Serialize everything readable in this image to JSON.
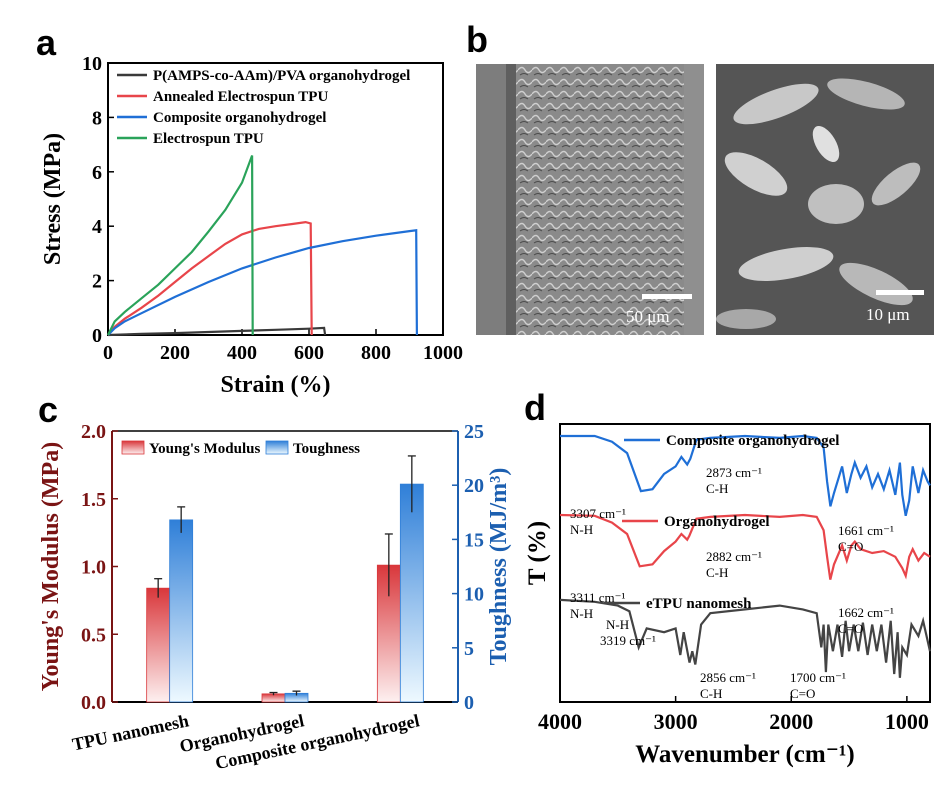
{
  "panel_labels": {
    "a": "a",
    "b": "b",
    "c": "c",
    "d": "d"
  },
  "sem_images": [
    {
      "scale_label": "50 μm"
    },
    {
      "scale_label": "10 μm"
    }
  ],
  "chart_data": [
    {
      "panel": "a",
      "type": "line",
      "xlabel": "Strain (%)",
      "ylabel": "Stress (MPa)",
      "xlim": [
        0,
        1000
      ],
      "ylim": [
        0,
        10
      ],
      "xticks": [
        0,
        200,
        400,
        600,
        800,
        1000
      ],
      "yticks": [
        0,
        2,
        4,
        6,
        8,
        10
      ],
      "legend_position": "top-left",
      "series": [
        {
          "name": "P(AMPS-co-AAm)/PVA organohydrogel",
          "color": "#3a3a3a",
          "x": [
            0,
            100,
            200,
            300,
            400,
            500,
            600,
            645,
            648
          ],
          "y": [
            0,
            0.04,
            0.07,
            0.11,
            0.15,
            0.19,
            0.23,
            0.26,
            0
          ]
        },
        {
          "name": "Annealed Electrospun TPU",
          "color": "#e8454a",
          "x": [
            0,
            20,
            50,
            100,
            150,
            200,
            250,
            300,
            350,
            400,
            450,
            500,
            550,
            590,
            605,
            608
          ],
          "y": [
            0,
            0.3,
            0.6,
            1.0,
            1.45,
            1.95,
            2.45,
            2.9,
            3.35,
            3.7,
            3.9,
            4.0,
            4.08,
            4.15,
            4.1,
            0
          ]
        },
        {
          "name": "Composite organohydrogel",
          "color": "#1f6fd6",
          "x": [
            0,
            20,
            50,
            100,
            200,
            300,
            400,
            500,
            600,
            700,
            800,
            900,
            920,
            922
          ],
          "y": [
            0,
            0.25,
            0.5,
            0.8,
            1.4,
            1.95,
            2.45,
            2.85,
            3.2,
            3.45,
            3.65,
            3.82,
            3.85,
            0
          ]
        },
        {
          "name": "Electrospun TPU",
          "color": "#2aa35a",
          "x": [
            0,
            20,
            50,
            100,
            150,
            200,
            250,
            300,
            350,
            400,
            430,
            432
          ],
          "y": [
            0,
            0.5,
            0.85,
            1.35,
            1.85,
            2.45,
            3.05,
            3.8,
            4.6,
            5.6,
            6.6,
            0
          ]
        }
      ]
    },
    {
      "panel": "c",
      "type": "bar",
      "categories": [
        "TPU nanomesh",
        "Organohydrogel",
        "Composite organohydrogel"
      ],
      "ylabel": "Young's Modulus (MPa)",
      "y2label": "Toughness (MJ/m³)",
      "ylim": [
        0,
        2.0
      ],
      "y2lim": [
        0,
        25
      ],
      "yticks": [
        0.0,
        0.5,
        1.0,
        1.5,
        2.0
      ],
      "y2ticks": [
        0,
        5,
        10,
        15,
        20,
        25
      ],
      "legend_position": "top-left",
      "series": [
        {
          "name": "Young's Modulus",
          "axis": "left",
          "color": "#d9373b",
          "values": [
            0.84,
            0.06,
            1.01
          ],
          "errors": [
            0.07,
            0.01,
            0.23
          ]
        },
        {
          "name": "Toughness",
          "axis": "right",
          "color": "#2f7fd8",
          "values": [
            16.8,
            0.8,
            20.1
          ],
          "errors": [
            1.2,
            0.2,
            2.6
          ]
        }
      ]
    },
    {
      "panel": "d",
      "type": "line",
      "xlabel": "Wavenumber (cm⁻¹)",
      "ylabel": "T (%)",
      "xlim": [
        4000,
        800
      ],
      "xticks": [
        4000,
        3000,
        2000,
        1000
      ],
      "series": [
        {
          "name": "Composite organohydrogel",
          "color": "#1f6fd6",
          "x": [
            4000,
            3700,
            3550,
            3420,
            3300,
            3200,
            3100,
            3000,
            2950,
            2900,
            2873,
            2820,
            2700,
            2400,
            2100,
            1900,
            1780,
            1720,
            1690,
            1661,
            1630,
            1560,
            1520,
            1480,
            1450,
            1400,
            1350,
            1300,
            1250,
            1200,
            1150,
            1100,
            1060,
            1040,
            1010,
            980,
            950,
            900,
            860,
            820,
            800
          ],
          "y": [
            0.5,
            0.5,
            0.35,
            0.05,
            -0.95,
            -0.9,
            -0.5,
            -0.3,
            -0.05,
            -0.25,
            -0.1,
            0.4,
            0.45,
            0.5,
            0.45,
            0.5,
            0.45,
            0.2,
            -0.7,
            -1.35,
            -1.0,
            -0.3,
            -1.0,
            -0.5,
            -0.2,
            -0.6,
            -0.3,
            -0.85,
            -0.5,
            -0.9,
            -0.4,
            -1.05,
            -0.2,
            -1.05,
            -1.6,
            -1.2,
            -0.3,
            -1.0,
            -0.4,
            -0.7,
            -0.8
          ]
        },
        {
          "name": "Organohydrogel",
          "color": "#e8454a",
          "x": [
            4000,
            3700,
            3550,
            3420,
            3311,
            3200,
            3100,
            3000,
            2950,
            2900,
            2882,
            2820,
            2700,
            2400,
            2100,
            1900,
            1780,
            1720,
            1690,
            1662,
            1630,
            1560,
            1520,
            1480,
            1450,
            1400,
            1300,
            1200,
            1100,
            1040,
            1010,
            980,
            950,
            900,
            850,
            800
          ],
          "y": [
            0.5,
            0.48,
            0.3,
            0.0,
            -0.85,
            -0.8,
            -0.45,
            -0.2,
            0.0,
            -0.15,
            -0.05,
            0.4,
            0.45,
            0.5,
            0.45,
            0.5,
            0.45,
            0.1,
            -0.6,
            -1.2,
            -0.8,
            -0.3,
            -0.7,
            -0.3,
            -0.2,
            -0.4,
            -0.5,
            -0.45,
            -0.6,
            -0.9,
            -1.1,
            -0.6,
            -0.4,
            -0.7,
            -0.5,
            -0.6
          ]
        },
        {
          "name": "eTPU nanomesh",
          "color": "#444444",
          "x": [
            4000,
            3700,
            3500,
            3400,
            3319,
            3250,
            3100,
            3000,
            2960,
            2930,
            2880,
            2856,
            2830,
            2780,
            2700,
            2400,
            2100,
            1900,
            1780,
            1740,
            1720,
            1700,
            1680,
            1640,
            1600,
            1560,
            1530,
            1500,
            1460,
            1420,
            1380,
            1340,
            1300,
            1260,
            1220,
            1180,
            1140,
            1110,
            1080,
            1060,
            1040,
            1000,
            960,
            900,
            860,
            800
          ],
          "y": [
            0.45,
            0.4,
            0.3,
            0.15,
            -0.8,
            -0.3,
            -0.4,
            -0.3,
            -1.0,
            -0.4,
            -1.2,
            -0.9,
            -1.25,
            -0.2,
            0.1,
            0.2,
            0.3,
            0.2,
            0.1,
            -0.8,
            -0.2,
            -1.45,
            -0.2,
            -0.9,
            -0.2,
            -1.05,
            -0.1,
            -0.9,
            -0.2,
            -0.9,
            -0.15,
            -1.0,
            -0.2,
            -0.9,
            -0.2,
            -1.2,
            -0.1,
            -1.5,
            -0.4,
            -1.6,
            -0.8,
            -1.0,
            -0.2,
            -0.5,
            -0.1,
            -0.9
          ]
        }
      ],
      "annotations": [
        {
          "series": "Composite organohydrogel",
          "text": "2873 cm⁻¹",
          "sub": "C-H"
        },
        {
          "series": "Composite organohydrogel",
          "text": "3307 cm⁻¹",
          "sub": "N-H"
        },
        {
          "series": "Composite organohydrogel",
          "text": "1661 cm⁻¹",
          "sub": "C=O"
        },
        {
          "series": "Organohydrogel",
          "text": "2882 cm⁻¹",
          "sub": "C-H"
        },
        {
          "series": "Organohydrogel",
          "text": "3311 cm⁻¹",
          "sub": "N-H"
        },
        {
          "series": "Organohydrogel",
          "text": "1662 cm⁻¹",
          "sub": "C=O"
        },
        {
          "series": "eTPU nanomesh",
          "text": "3319 cm⁻¹",
          "sub": "N-H"
        },
        {
          "series": "eTPU nanomesh",
          "text": "2856 cm⁻¹",
          "sub": "C-H"
        },
        {
          "series": "eTPU nanomesh",
          "text": "1700 cm⁻¹",
          "sub": "C=O"
        }
      ]
    }
  ]
}
